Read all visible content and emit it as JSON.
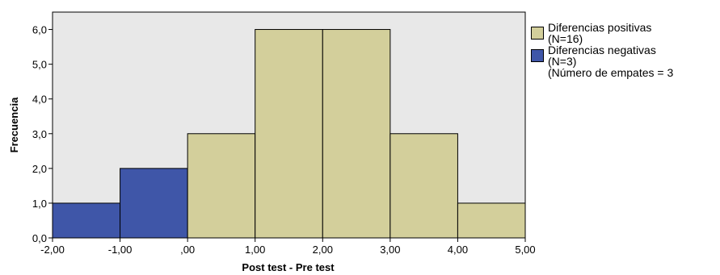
{
  "chart_data": {
    "type": "bar",
    "xlabel": "Post test - Pre test",
    "ylabel": "Frecuencia",
    "xlim": [
      -2,
      5
    ],
    "ylim": [
      0,
      6.5
    ],
    "x_ticks": [
      -2,
      -1,
      0,
      1,
      2,
      3,
      4,
      5
    ],
    "x_tick_labels": [
      "-2,00",
      "-1,00",
      ",00",
      "1,00",
      "2,00",
      "3,00",
      "4,00",
      "5,00"
    ],
    "y_ticks": [
      0,
      1,
      2,
      3,
      4,
      5,
      6
    ],
    "y_tick_labels": [
      "0,0",
      "1,0",
      "2,0",
      "3,0",
      "4,0",
      "5,0",
      "6,0"
    ],
    "grid": false,
    "legend_position": "right",
    "plot_background": "#e8e8e8",
    "bins": [
      {
        "from": -2,
        "to": -1,
        "count": 1,
        "series": "neg"
      },
      {
        "from": -1,
        "to": 0,
        "count": 2,
        "series": "neg"
      },
      {
        "from": 0,
        "to": 1,
        "count": 3,
        "series": "pos"
      },
      {
        "from": 1,
        "to": 2,
        "count": 6,
        "series": "pos"
      },
      {
        "from": 2,
        "to": 3,
        "count": 6,
        "series": "pos"
      },
      {
        "from": 3,
        "to": 4,
        "count": 3,
        "series": "pos"
      },
      {
        "from": 4,
        "to": 5,
        "count": 1,
        "series": "pos"
      }
    ],
    "series": [
      {
        "id": "pos",
        "name": "Diferencias positivas",
        "n_label": "(N=16)",
        "color": "#d3cf9b"
      },
      {
        "id": "neg",
        "name": "Diferencias negativas",
        "n_label": "(N=3)",
        "color": "#3f56a8"
      }
    ],
    "note": "(Número de empates = 3"
  }
}
